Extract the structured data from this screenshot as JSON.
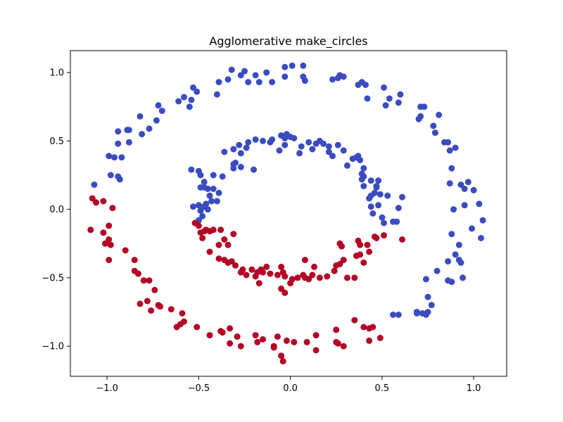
{
  "chart_data": {
    "type": "scatter",
    "title": "Agglomerative make_circles",
    "xlabel": "",
    "ylabel": "",
    "xlim": [
      -1.2,
      1.18
    ],
    "ylim": [
      -1.22,
      1.16
    ],
    "xticks": [
      -1.0,
      -0.5,
      0.0,
      0.5,
      1.0
    ],
    "yticks": [
      -1.0,
      -0.5,
      0.0,
      0.5,
      1.0
    ],
    "xtick_labels": [
      "−1.0",
      "−0.5",
      "0.0",
      "0.5",
      "1.0"
    ],
    "ytick_labels": [
      "−1.0",
      "−0.5",
      "0.0",
      "0.5",
      "1.0"
    ],
    "grid": false,
    "series": [
      {
        "color": "#3b4cc0",
        "points": [
          [
            -1.07,
            0.18
          ],
          [
            -0.98,
            0.25
          ],
          [
            -0.94,
            0.24
          ],
          [
            -0.93,
            0.22
          ],
          [
            -0.99,
            0.39
          ],
          [
            -0.96,
            0.38
          ],
          [
            -0.92,
            0.38
          ],
          [
            -0.94,
            0.48
          ],
          [
            -0.88,
            0.49
          ],
          [
            -0.94,
            0.57
          ],
          [
            -0.89,
            0.58
          ],
          [
            -0.88,
            0.58
          ],
          [
            -0.81,
            0.55
          ],
          [
            -0.77,
            0.59
          ],
          [
            -0.82,
            0.68
          ],
          [
            -0.73,
            0.65
          ],
          [
            -0.72,
            0.76
          ],
          [
            -0.7,
            0.72
          ],
          [
            -0.61,
            0.79
          ],
          [
            -0.58,
            0.82
          ],
          [
            -0.54,
            0.8
          ],
          [
            -0.55,
            0.75
          ],
          [
            -0.53,
            0.89
          ],
          [
            -0.51,
            0.86
          ],
          [
            -0.4,
            0.84
          ],
          [
            -0.39,
            0.93
          ],
          [
            -0.34,
            0.95
          ],
          [
            -0.32,
            1.02
          ],
          [
            -0.27,
            0.98
          ],
          [
            -0.25,
            1.01
          ],
          [
            -0.23,
            0.93
          ],
          [
            -0.19,
            0.98
          ],
          [
            -0.17,
            0.93
          ],
          [
            -0.13,
            1.0
          ],
          [
            -0.1,
            0.93
          ],
          [
            -0.03,
            0.97
          ],
          [
            -0.03,
            1.04
          ],
          [
            0.01,
            1.05
          ],
          [
            0.07,
            1.05
          ],
          [
            0.07,
            0.97
          ],
          [
            0.08,
            0.94
          ],
          [
            0.23,
            0.95
          ],
          [
            0.26,
            0.96
          ],
          [
            0.27,
            0.98
          ],
          [
            0.29,
            0.97
          ],
          [
            0.37,
            0.91
          ],
          [
            0.39,
            0.93
          ],
          [
            0.41,
            0.91
          ],
          [
            0.42,
            0.81
          ],
          [
            0.51,
            0.89
          ],
          [
            0.52,
            0.76
          ],
          [
            0.54,
            0.81
          ],
          [
            0.59,
            0.78
          ],
          [
            0.6,
            0.84
          ],
          [
            0.7,
            0.66
          ],
          [
            0.71,
            0.75
          ],
          [
            0.73,
            0.75
          ],
          [
            0.71,
            0.68
          ],
          [
            0.78,
            0.61
          ],
          [
            0.81,
            0.69
          ],
          [
            0.79,
            0.56
          ],
          [
            0.84,
            0.49
          ],
          [
            0.86,
            0.49
          ],
          [
            0.87,
            0.43
          ],
          [
            0.9,
            0.45
          ],
          [
            0.88,
            0.3
          ],
          [
            0.93,
            0.18
          ],
          [
            0.95,
            0.15
          ],
          [
            0.97,
            0.2
          ],
          [
            0.87,
            0.19
          ],
          [
            1.0,
            0.14
          ],
          [
            0.89,
            0.0
          ],
          [
            0.95,
            0.03
          ],
          [
            1.03,
            0.04
          ],
          [
            1.05,
            -0.08
          ],
          [
            0.99,
            -0.14
          ],
          [
            1.04,
            -0.21
          ],
          [
            0.88,
            -0.18
          ],
          [
            0.92,
            -0.26
          ],
          [
            0.9,
            -0.33
          ],
          [
            0.92,
            -0.37
          ],
          [
            0.93,
            -0.39
          ],
          [
            0.86,
            -0.38
          ],
          [
            0.8,
            -0.45
          ],
          [
            0.86,
            -0.52
          ],
          [
            0.88,
            -0.53
          ],
          [
            0.94,
            -0.5
          ],
          [
            0.74,
            -0.51
          ],
          [
            0.75,
            -0.64
          ],
          [
            0.77,
            -0.7
          ],
          [
            0.69,
            -0.75
          ],
          [
            0.69,
            -0.76
          ],
          [
            0.72,
            -0.76
          ],
          [
            0.74,
            -0.77
          ],
          [
            0.75,
            -0.75
          ],
          [
            0.56,
            -0.77
          ],
          [
            0.59,
            -0.77
          ],
          [
            -0.54,
            0.29
          ],
          [
            -0.5,
            0.28
          ],
          [
            -0.49,
            0.25
          ],
          [
            -0.47,
            0.2
          ],
          [
            -0.49,
            0.16
          ],
          [
            -0.47,
            0.16
          ],
          [
            -0.45,
            0.15
          ],
          [
            -0.44,
            0.1
          ],
          [
            -0.42,
            0.15
          ],
          [
            -0.39,
            0.12
          ],
          [
            -0.42,
            0.25
          ],
          [
            -0.37,
            0.24
          ],
          [
            -0.31,
            0.3
          ],
          [
            -0.3,
            0.34
          ],
          [
            -0.31,
            0.33
          ],
          [
            -0.27,
            0.31
          ],
          [
            -0.2,
            0.29
          ],
          [
            -0.36,
            0.42
          ],
          [
            -0.31,
            0.44
          ],
          [
            -0.28,
            0.47
          ],
          [
            -0.27,
            0.41
          ],
          [
            -0.24,
            0.45
          ],
          [
            -0.23,
            0.49
          ],
          [
            -0.19,
            0.51
          ],
          [
            -0.15,
            0.5
          ],
          [
            -0.11,
            0.49
          ],
          [
            -0.1,
            0.51
          ],
          [
            -0.06,
            0.43
          ],
          [
            -0.05,
            0.54
          ],
          [
            -0.03,
            0.47
          ],
          [
            -0.03,
            0.52
          ],
          [
            -0.02,
            0.55
          ],
          [
            0.0,
            0.53
          ],
          [
            0.02,
            0.52
          ],
          [
            0.05,
            0.41
          ],
          [
            0.06,
            0.46
          ],
          [
            0.1,
            0.49
          ],
          [
            0.12,
            0.44
          ],
          [
            0.14,
            0.48
          ],
          [
            0.16,
            0.5
          ],
          [
            0.18,
            0.48
          ],
          [
            0.21,
            0.42
          ],
          [
            0.21,
            0.46
          ],
          [
            0.23,
            0.39
          ],
          [
            0.26,
            0.47
          ],
          [
            0.29,
            0.43
          ],
          [
            0.31,
            0.32
          ],
          [
            0.34,
            0.37
          ],
          [
            0.36,
            0.38
          ],
          [
            0.37,
            0.39
          ],
          [
            0.38,
            0.36
          ],
          [
            0.4,
            0.3
          ],
          [
            0.39,
            0.26
          ],
          [
            0.39,
            0.22
          ],
          [
            0.4,
            0.24
          ],
          [
            0.4,
            0.17
          ],
          [
            0.44,
            0.21
          ],
          [
            0.44,
            0.1
          ],
          [
            0.43,
            0.08
          ],
          [
            0.44,
            0.02
          ],
          [
            0.45,
            -0.03
          ],
          [
            0.46,
            0.12
          ],
          [
            0.47,
            0.16
          ],
          [
            0.48,
            0.21
          ],
          [
            0.47,
            0.17
          ],
          [
            0.48,
            0.03
          ],
          [
            0.49,
            0.11
          ],
          [
            0.53,
            0.1
          ],
          [
            0.56,
            -0.09
          ],
          [
            0.58,
            -0.09
          ],
          [
            0.61,
            0.09
          ],
          [
            0.59,
            0.01
          ],
          [
            0.5,
            -0.06
          ],
          [
            0.51,
            -0.1
          ],
          [
            -0.53,
            0.02
          ],
          [
            -0.5,
            0.03
          ],
          [
            -0.49,
            -0.01
          ],
          [
            -0.47,
            0.02
          ],
          [
            -0.45,
            0.0
          ],
          [
            -0.48,
            -0.05
          ],
          [
            -0.5,
            -0.08
          ],
          [
            -0.46,
            0.04
          ],
          [
            -0.43,
            0.06
          ],
          [
            -0.4,
            0.06
          ]
        ]
      },
      {
        "color": "#b40426",
        "points": [
          [
            -1.08,
            0.08
          ],
          [
            -1.06,
            0.05
          ],
          [
            -1.02,
            0.06
          ],
          [
            -0.97,
            0.01
          ],
          [
            -1.09,
            -0.15
          ],
          [
            -1.02,
            -0.17
          ],
          [
            -1.01,
            -0.25
          ],
          [
            -0.99,
            -0.22
          ],
          [
            -0.98,
            -0.26
          ],
          [
            -0.99,
            -0.12
          ],
          [
            -0.99,
            -0.37
          ],
          [
            -0.9,
            -0.3
          ],
          [
            -0.85,
            -0.37
          ],
          [
            -0.85,
            -0.45
          ],
          [
            -0.83,
            -0.47
          ],
          [
            -0.8,
            -0.52
          ],
          [
            -0.77,
            -0.52
          ],
          [
            -0.74,
            -0.59
          ],
          [
            -0.71,
            -0.71
          ],
          [
            -0.72,
            -0.7
          ],
          [
            -0.78,
            -0.67
          ],
          [
            -0.82,
            -0.69
          ],
          [
            -0.76,
            -0.74
          ],
          [
            -0.65,
            -0.73
          ],
          [
            -0.59,
            -0.76
          ],
          [
            -0.58,
            -0.82
          ],
          [
            -0.6,
            -0.84
          ],
          [
            -0.62,
            -0.86
          ],
          [
            -0.51,
            -0.86
          ],
          [
            -0.44,
            -0.92
          ],
          [
            -0.38,
            -0.89
          ],
          [
            -0.37,
            -0.9
          ],
          [
            -0.33,
            -0.87
          ],
          [
            -0.29,
            -0.93
          ],
          [
            -0.33,
            -0.98
          ],
          [
            -0.27,
            -1.0
          ],
          [
            -0.19,
            -0.92
          ],
          [
            -0.18,
            -0.97
          ],
          [
            -0.15,
            -0.95
          ],
          [
            -0.09,
            -1.0
          ],
          [
            -0.07,
            -0.93
          ],
          [
            -0.09,
            -1.01
          ],
          [
            -0.05,
            -1.07
          ],
          [
            -0.04,
            -1.11
          ],
          [
            -0.02,
            -0.96
          ],
          [
            0.02,
            -0.97
          ],
          [
            0.09,
            -0.97
          ],
          [
            0.14,
            -0.92
          ],
          [
            0.14,
            -1.03
          ],
          [
            0.25,
            -0.88
          ],
          [
            0.25,
            -0.97
          ],
          [
            0.26,
            -0.98
          ],
          [
            0.29,
            -1.0
          ],
          [
            0.35,
            -0.81
          ],
          [
            0.4,
            -0.86
          ],
          [
            0.43,
            -0.87
          ],
          [
            0.45,
            -0.86
          ],
          [
            0.43,
            -0.96
          ],
          [
            0.49,
            -0.94
          ],
          [
            -0.52,
            -0.1
          ],
          [
            -0.5,
            -0.12
          ],
          [
            -0.49,
            -0.17
          ],
          [
            -0.47,
            -0.16
          ],
          [
            -0.46,
            -0.15
          ],
          [
            -0.48,
            -0.21
          ],
          [
            -0.44,
            -0.16
          ],
          [
            -0.42,
            -0.15
          ],
          [
            -0.38,
            -0.15
          ],
          [
            -0.36,
            -0.22
          ],
          [
            -0.31,
            -0.18
          ],
          [
            -0.34,
            -0.26
          ],
          [
            -0.39,
            -0.26
          ],
          [
            -0.44,
            -0.31
          ],
          [
            -0.39,
            -0.36
          ],
          [
            -0.36,
            -0.37
          ],
          [
            -0.34,
            -0.39
          ],
          [
            -0.32,
            -0.38
          ],
          [
            -0.3,
            -0.41
          ],
          [
            -0.27,
            -0.46
          ],
          [
            -0.26,
            -0.44
          ],
          [
            -0.24,
            -0.48
          ],
          [
            -0.21,
            -0.44
          ],
          [
            -0.19,
            -0.49
          ],
          [
            -0.18,
            -0.46
          ],
          [
            -0.16,
            -0.44
          ],
          [
            -0.15,
            -0.46
          ],
          [
            -0.13,
            -0.42
          ],
          [
            -0.11,
            -0.47
          ],
          [
            -0.17,
            -0.54
          ],
          [
            -0.07,
            -0.48
          ],
          [
            -0.05,
            -0.42
          ],
          [
            -0.04,
            -0.46
          ],
          [
            -0.03,
            -0.49
          ],
          [
            -0.05,
            -0.58
          ],
          [
            -0.03,
            -0.61
          ],
          [
            0.0,
            -0.54
          ],
          [
            0.01,
            -0.51
          ],
          [
            0.04,
            -0.5
          ],
          [
            0.07,
            -0.48
          ],
          [
            0.08,
            -0.37
          ],
          [
            0.08,
            -0.5
          ],
          [
            0.1,
            -0.51
          ],
          [
            0.12,
            -0.48
          ],
          [
            0.13,
            -0.42
          ],
          [
            0.16,
            -0.5
          ],
          [
            0.2,
            -0.49
          ],
          [
            0.25,
            -0.41
          ],
          [
            0.24,
            -0.45
          ],
          [
            0.27,
            -0.25
          ],
          [
            0.28,
            -0.27
          ],
          [
            0.27,
            -0.4
          ],
          [
            0.29,
            -0.37
          ],
          [
            0.31,
            -0.5
          ],
          [
            0.35,
            -0.5
          ],
          [
            0.36,
            -0.34
          ],
          [
            0.38,
            -0.33
          ],
          [
            0.38,
            -0.26
          ],
          [
            0.42,
            -0.26
          ],
          [
            0.37,
            -0.23
          ],
          [
            0.4,
            -0.39
          ],
          [
            0.43,
            -0.31
          ],
          [
            0.46,
            -0.2
          ],
          [
            0.47,
            -0.21
          ],
          [
            0.51,
            -0.19
          ],
          [
            0.61,
            -0.22
          ]
        ]
      }
    ]
  }
}
